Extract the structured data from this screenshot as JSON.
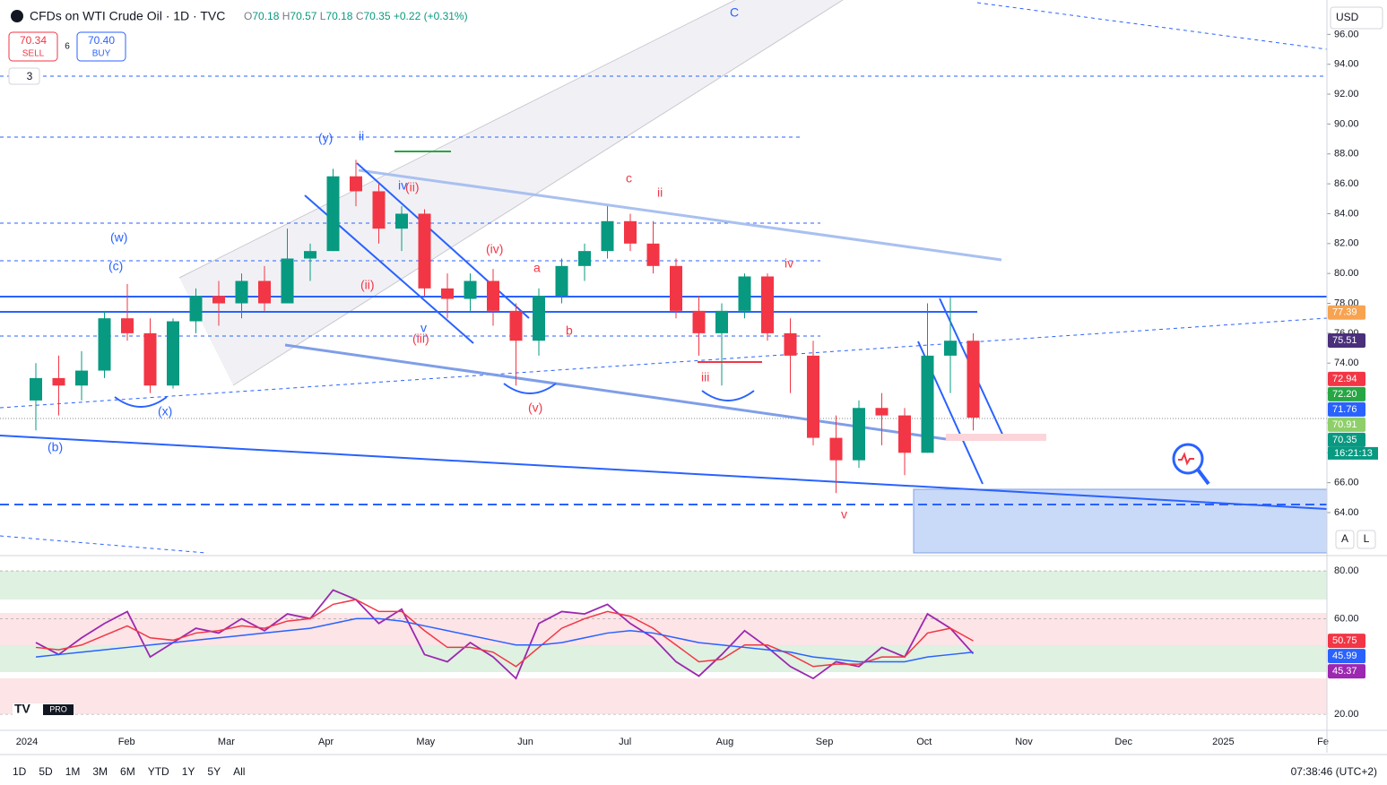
{
  "header": {
    "symbol": "CFDs on WTI Crude Oil · 1D · TVC",
    "ohlc": [
      "O",
      "70.18",
      "H",
      "70.57",
      "L",
      "70.18",
      "C",
      "70.35",
      "+0.22 (+0.31%)"
    ]
  },
  "trade": {
    "sell_price": "70.34",
    "sell": "SELL",
    "spread": "6",
    "buy_price": "70.40",
    "buy": "BUY"
  },
  "indicators_count": "3",
  "currency": "USD",
  "logo": "PRO",
  "scale_buttons": [
    "A",
    "L"
  ],
  "chart_data": [
    {
      "type": "candlestick",
      "months": [
        "2024",
        "Feb",
        "Mar",
        "Apr",
        "May",
        "Jun",
        "Jul",
        "Aug",
        "Sep",
        "Oct",
        "Nov",
        "Dec",
        "2025",
        "Fe"
      ],
      "open": [
        71.5,
        73,
        72.5,
        73.5,
        77,
        76,
        72.5,
        76.8,
        78.5,
        78,
        79.5,
        78,
        81,
        81.5,
        86.5,
        85.5,
        83,
        84,
        79,
        78.3,
        79.5,
        77.5,
        75.5,
        78.5,
        80.5,
        81.5,
        83.5,
        82,
        80.5,
        77.5,
        76,
        77.5,
        79.8,
        76,
        74.5,
        69,
        67.5,
        71,
        70.5,
        68,
        74.5,
        75.5
      ],
      "high": [
        74,
        74.5,
        74.8,
        77.5,
        79.3,
        77,
        77,
        79,
        79.5,
        80,
        80.5,
        83,
        82,
        87,
        87.6,
        86,
        84.5,
        84.3,
        80,
        80,
        80.3,
        78,
        79,
        81,
        82,
        84.5,
        84,
        83.5,
        81,
        78.5,
        78,
        80,
        80,
        77,
        75.5,
        70.5,
        71.5,
        72,
        71,
        78,
        78.4,
        76
      ],
      "low": [
        69.5,
        70.5,
        71.5,
        73,
        75.5,
        72,
        72.3,
        76,
        76.5,
        77,
        77.5,
        78,
        79.5,
        81.5,
        84.5,
        82,
        81.5,
        78.5,
        77,
        77.5,
        76.5,
        72.5,
        74.5,
        78,
        79.5,
        81,
        81.5,
        80,
        77,
        74.5,
        72.5,
        77,
        75.5,
        72,
        68.5,
        65.3,
        67,
        68.5,
        66.5,
        68,
        72,
        69.5
      ],
      "close": [
        73,
        72.5,
        73.5,
        77,
        76,
        72.5,
        76.8,
        78.5,
        78,
        79.5,
        78,
        81,
        81.5,
        86.5,
        85.5,
        83,
        84,
        79,
        78.3,
        79.5,
        77.5,
        75.5,
        78.5,
        80.5,
        81.5,
        83.5,
        82,
        80.5,
        77.5,
        76,
        77.5,
        79.8,
        76,
        74.5,
        69,
        67.5,
        71,
        70.5,
        68,
        74.5,
        75.5,
        70.35
      ],
      "up_color": "#089981",
      "down_color": "#f23645",
      "ylim": [
        61.3,
        98.3
      ],
      "yticks": [
        {
          "value": 96,
          "label": "96.00"
        },
        {
          "value": 94,
          "label": "94.00"
        },
        {
          "value": 92,
          "label": "92.00"
        },
        {
          "value": 90,
          "label": "90.00"
        },
        {
          "value": 88,
          "label": "88.00"
        },
        {
          "value": 86,
          "label": "86.00"
        },
        {
          "value": 84,
          "label": "84.00"
        },
        {
          "value": 82,
          "label": "82.00"
        },
        {
          "value": 80,
          "label": "80.00"
        },
        {
          "value": 78,
          "label": "78.00"
        },
        {
          "value": 76,
          "label": "76.00"
        },
        {
          "value": 74,
          "label": "74.00"
        },
        {
          "value": 72,
          "label": "72.00"
        },
        {
          "value": 70,
          "label": "70.00"
        },
        {
          "value": 68,
          "label": "68.00"
        },
        {
          "value": 66,
          "label": "66.00"
        },
        {
          "value": 64,
          "label": "64.00"
        }
      ],
      "price_tags": {
        "values": [
          77.39,
          75.51,
          72.94,
          72.2,
          71.76,
          70.91,
          70.35
        ],
        "value_labels": [
          "77.39",
          "75.51",
          "72.94",
          "72.20",
          "71.76",
          "70.91",
          "70.35"
        ],
        "colors": [
          "#f7a350",
          "#4a2f7a",
          "#f23645",
          "#27a644",
          "#2962ff",
          "#8fcf6a",
          "#089981"
        ]
      },
      "countdown": "16:21:13",
      "annotations": [
        "C",
        "(y)",
        "ii",
        "iv",
        "(ii)",
        "(w)",
        "(c)",
        "(ii)",
        "(iii)",
        "v",
        "(x)",
        "(b)",
        "c",
        "ii",
        "(iv)",
        "a",
        "b",
        "(v)",
        "iv",
        "iii",
        "v"
      ]
    },
    {
      "type": "line",
      "series": [
        {
          "color": "#9c27b0",
          "values": [
            50,
            45,
            52,
            58,
            63,
            44,
            50,
            56,
            54,
            60,
            55,
            62,
            60,
            72,
            68,
            58,
            64,
            45,
            42,
            50,
            44,
            35,
            58,
            63,
            62,
            66,
            58,
            52,
            42,
            36,
            45,
            55,
            48,
            40,
            35,
            42,
            40,
            48,
            44,
            62,
            56,
            45.37
          ],
          "value_label": "45.37"
        },
        {
          "color": "#f23645",
          "values": [
            48,
            47,
            49,
            53,
            57,
            52,
            51,
            54,
            55,
            57,
            56,
            59,
            60,
            66,
            68,
            63,
            63,
            55,
            48,
            48,
            46,
            40,
            48,
            56,
            60,
            63,
            61,
            56,
            49,
            42,
            43,
            49,
            49,
            45,
            40,
            41,
            41,
            44,
            44,
            54,
            56,
            50.75
          ],
          "value_label": "50.75"
        },
        {
          "color": "#2962ff",
          "values": [
            44,
            45,
            46,
            47,
            48,
            49,
            50,
            51,
            52,
            53,
            54,
            55,
            56,
            58,
            60,
            60,
            59,
            57,
            55,
            53,
            51,
            49,
            49,
            50,
            52,
            54,
            55,
            54,
            52,
            50,
            49,
            48,
            47,
            46,
            44,
            43,
            42,
            42,
            42,
            44,
            45,
            45.99
          ],
          "value_label": "45.99"
        }
      ],
      "ylim": [
        13.3,
        86.4
      ],
      "yticks": [
        {
          "value": 80,
          "label": "80.00"
        },
        {
          "value": 60,
          "label": "60.00"
        },
        {
          "value": 20,
          "label": "20.00"
        }
      ]
    }
  ],
  "bottom_bar": {
    "ranges": [
      "1D",
      "5D",
      "1M",
      "3M",
      "6M",
      "YTD",
      "1Y",
      "5Y",
      "All"
    ],
    "clock": "07:38:46 (UTC+2)"
  }
}
